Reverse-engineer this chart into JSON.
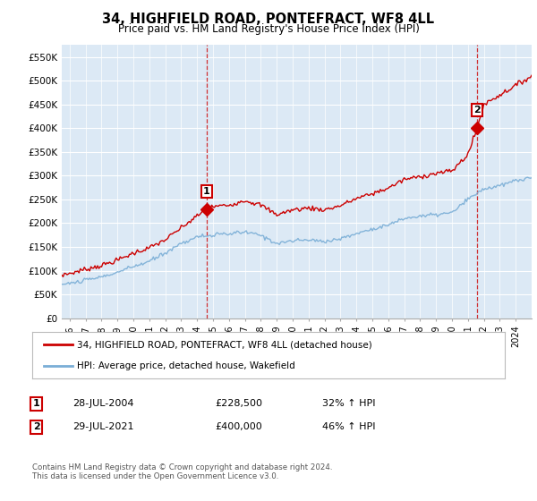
{
  "title": "34, HIGHFIELD ROAD, PONTEFRACT, WF8 4LL",
  "subtitle": "Price paid vs. HM Land Registry's House Price Index (HPI)",
  "background_color": "#ffffff",
  "chart_bg_color": "#dce9f5",
  "grid_color": "#ffffff",
  "ylim": [
    0,
    575000
  ],
  "yticks": [
    0,
    50000,
    100000,
    150000,
    200000,
    250000,
    300000,
    350000,
    400000,
    450000,
    500000,
    550000
  ],
  "ytick_labels": [
    "£0",
    "£50K",
    "£100K",
    "£150K",
    "£200K",
    "£250K",
    "£300K",
    "£350K",
    "£400K",
    "£450K",
    "£500K",
    "£550K"
  ],
  "red_color": "#cc0000",
  "blue_color": "#7aaed6",
  "vline_color": "#cc0000",
  "sale1_date": "28-JUL-2004",
  "sale1_price": "£228,500",
  "sale1_hpi": "32% ↑ HPI",
  "sale2_date": "29-JUL-2021",
  "sale2_price": "£400,000",
  "sale2_hpi": "46% ↑ HPI",
  "legend_line1": "34, HIGHFIELD ROAD, PONTEFRACT, WF8 4LL (detached house)",
  "legend_line2": "HPI: Average price, detached house, Wakefield",
  "footer": "Contains HM Land Registry data © Crown copyright and database right 2024.\nThis data is licensed under the Open Government Licence v3.0.",
  "sale1_x": 2004.583,
  "sale2_x": 2021.583,
  "sale1_y": 228500,
  "sale2_y": 400000,
  "xlim_min": 1995.5,
  "xlim_max": 2025.0
}
